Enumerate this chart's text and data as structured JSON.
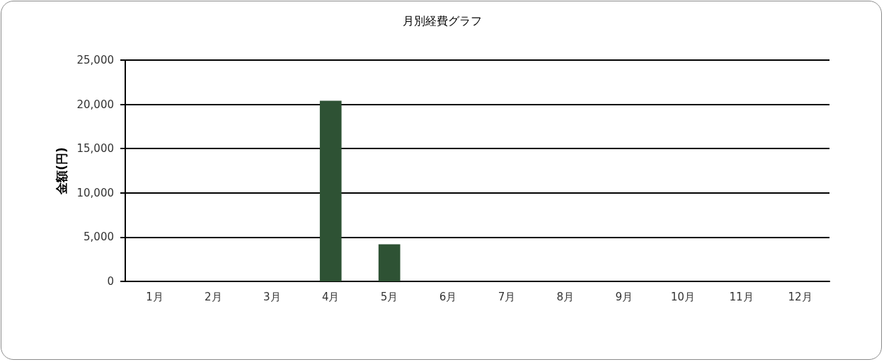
{
  "chart_data": {
    "type": "bar",
    "title": "月別経費グラフ",
    "ylabel": "金額(円)",
    "categories": [
      "1月",
      "2月",
      "3月",
      "4月",
      "5月",
      "6月",
      "7月",
      "8月",
      "9月",
      "10月",
      "11月",
      "12月"
    ],
    "values": [
      0,
      0,
      0,
      20400,
      4200,
      0,
      0,
      0,
      0,
      0,
      0,
      0
    ],
    "color": "#2e5234",
    "ylim": [
      0,
      25000
    ],
    "yticks": [
      {
        "value": 0,
        "label": "0"
      },
      {
        "value": 5000,
        "label": "5,000"
      },
      {
        "value": 10000,
        "label": "10,000"
      },
      {
        "value": 15000,
        "label": "15,000"
      },
      {
        "value": 20000,
        "label": "20,000"
      },
      {
        "value": 25000,
        "label": "25,000"
      }
    ],
    "grid": "y"
  }
}
